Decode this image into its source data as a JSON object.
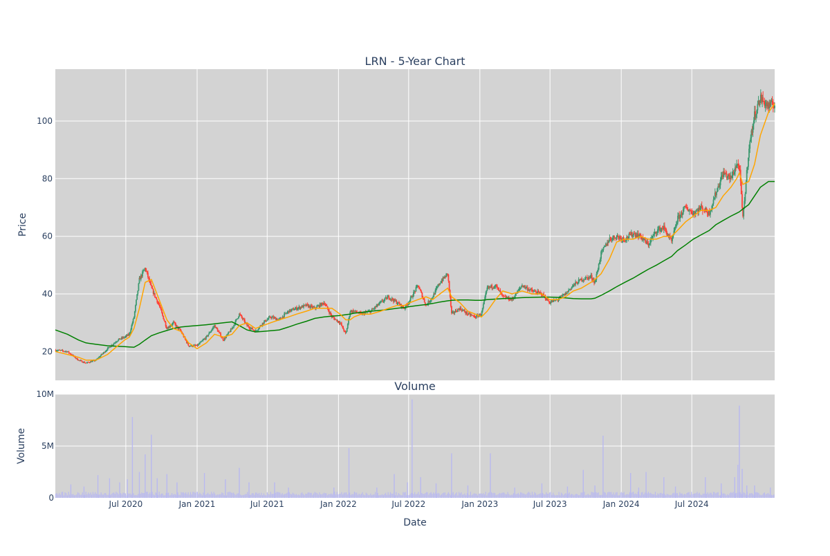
{
  "chart_data": [
    {
      "type": "candlestick",
      "title": "LRN - 5-Year Chart",
      "ylabel": "Price",
      "ylim": [
        10,
        118
      ],
      "yticks": [
        20,
        40,
        60,
        80,
        100
      ],
      "x_range": [
        "2020-01-01",
        "2025-01-31"
      ],
      "grid": true,
      "colors": {
        "up": "#3d9970",
        "down": "#ff4136",
        "ma_short": "#ffa500",
        "ma_long": "#008000",
        "background": "#d3d3d3"
      },
      "price_checkpoints": {
        "x": [
          "2020-01-01",
          "2020-02-01",
          "2020-03-01",
          "2020-03-20",
          "2020-04-15",
          "2020-05-15",
          "2020-06-10",
          "2020-06-28",
          "2020-07-10",
          "2020-07-22",
          "2020-08-05",
          "2020-08-20",
          "2020-09-05",
          "2020-09-25",
          "2020-10-15",
          "2020-11-01",
          "2020-11-20",
          "2020-12-10",
          "2021-01-01",
          "2021-01-25",
          "2021-02-15",
          "2021-03-10",
          "2021-04-01",
          "2021-04-20",
          "2021-05-10",
          "2021-06-01",
          "2021-06-20",
          "2021-07-10",
          "2021-08-01",
          "2021-08-25",
          "2021-09-15",
          "2021-10-10",
          "2021-11-01",
          "2021-11-25",
          "2021-12-15",
          "2022-01-05",
          "2022-01-20",
          "2022-01-31",
          "2022-02-10",
          "2022-03-01",
          "2022-03-25",
          "2022-04-20",
          "2022-05-10",
          "2022-06-01",
          "2022-06-20",
          "2022-07-05",
          "2022-07-25",
          "2022-08-15",
          "2022-09-01",
          "2022-09-20",
          "2022-10-10",
          "2022-10-20",
          "2022-11-10",
          "2022-12-01",
          "2022-12-20",
          "2023-01-05",
          "2023-01-20",
          "2023-02-10",
          "2023-03-01",
          "2023-03-25",
          "2023-04-20",
          "2023-05-15",
          "2023-06-10",
          "2023-06-30",
          "2023-07-20",
          "2023-08-10",
          "2023-08-30",
          "2023-09-20",
          "2023-10-15",
          "2023-10-25",
          "2023-11-10",
          "2023-12-01",
          "2023-12-20",
          "2024-01-10",
          "2024-02-01",
          "2024-02-20",
          "2024-03-10",
          "2024-04-01",
          "2024-04-20",
          "2024-05-10",
          "2024-05-25",
          "2024-06-15",
          "2024-07-05",
          "2024-07-25",
          "2024-08-15",
          "2024-09-01",
          "2024-09-20",
          "2024-10-10",
          "2024-10-25",
          "2024-11-01",
          "2024-11-10",
          "2024-11-25",
          "2024-12-10",
          "2024-12-25",
          "2025-01-15",
          "2025-01-31"
        ],
        "close": [
          20.5,
          20,
          17,
          16,
          17,
          21,
          24,
          25,
          26,
          32,
          45,
          49,
          42,
          36,
          28,
          30,
          27,
          22,
          22,
          25,
          29,
          24,
          28,
          33,
          29,
          27,
          30,
          32,
          31,
          34,
          35,
          36,
          35,
          37,
          32,
          30,
          26,
          34,
          34,
          33,
          34,
          37,
          39,
          37,
          35,
          38,
          43,
          36,
          39,
          44,
          47,
          33,
          35,
          33,
          32,
          33,
          42,
          43,
          39,
          38,
          43,
          41,
          40,
          37,
          38,
          40,
          43,
          45,
          46,
          44,
          54,
          59,
          60,
          59,
          61,
          60,
          57,
          62,
          63,
          58,
          66,
          70,
          68,
          70,
          68,
          75,
          82,
          80,
          85,
          84,
          66,
          90,
          102,
          108,
          105,
          106
        ],
        "ma_short": [
          20,
          19,
          18,
          17,
          17,
          19,
          22,
          24,
          25,
          28,
          35,
          44,
          45,
          38,
          31,
          28,
          27,
          23,
          21,
          23,
          26,
          25,
          26,
          29,
          30,
          28,
          29,
          30,
          31,
          32,
          33,
          34,
          35,
          35,
          35,
          33,
          31,
          31,
          32,
          33,
          33,
          34,
          35,
          36,
          36,
          37,
          38,
          39,
          38,
          40,
          42,
          39,
          37,
          34,
          33,
          32,
          34,
          38,
          41,
          40,
          41,
          40,
          40,
          38,
          38,
          39,
          41,
          42,
          44,
          45,
          47,
          52,
          58,
          59,
          59,
          60,
          59,
          59,
          60,
          60,
          62,
          65,
          67,
          69,
          69,
          70,
          74,
          77,
          80,
          82,
          78,
          79,
          85,
          95,
          103,
          106
        ],
        "ma_long": [
          27.5,
          26,
          24,
          23,
          22.5,
          22,
          21.8,
          21.7,
          21.6,
          21.5,
          22.5,
          24,
          25.5,
          26.5,
          27.3,
          28,
          28.5,
          28.8,
          29,
          29.3,
          29.6,
          30,
          30.3,
          29,
          27.5,
          26.8,
          27,
          27.2,
          27.5,
          28.5,
          29.5,
          30.5,
          31.5,
          32,
          32.3,
          32.5,
          32.8,
          33,
          33.3,
          33.6,
          34,
          34.3,
          34.6,
          35,
          35.3,
          35.6,
          36,
          36.3,
          36.7,
          37.2,
          37.6,
          37.8,
          37.9,
          37.9,
          37.8,
          37.8,
          38,
          38.2,
          38.4,
          38.5,
          38.7,
          38.8,
          38.9,
          38.9,
          38.8,
          38.6,
          38.4,
          38.3,
          38.3,
          38.5,
          39.5,
          41,
          42.5,
          44,
          45.5,
          47,
          48.5,
          50,
          51.5,
          53,
          55,
          57,
          59,
          60.5,
          62,
          64,
          65.5,
          67,
          68,
          68.5,
          69.5,
          71,
          74,
          77,
          79,
          79
        ]
      }
    },
    {
      "type": "bar",
      "title": "Volume",
      "xlabel": "Date",
      "ylabel": "Volume",
      "ylim": [
        0,
        10000000
      ],
      "yticks": [
        0,
        5000000,
        10000000
      ],
      "ytick_labels": [
        "0",
        "5M",
        "10M"
      ],
      "xtick_labels": [
        "Jul 2020",
        "Jan 2021",
        "Jul 2021",
        "Jan 2022",
        "Jul 2022",
        "Jan 2023",
        "Jul 2023",
        "Jan 2024",
        "Jul 2024"
      ],
      "xtick_dates": [
        "2020-07-01",
        "2021-01-01",
        "2021-07-01",
        "2022-01-01",
        "2022-07-01",
        "2023-01-01",
        "2023-07-01",
        "2024-01-01",
        "2024-07-01"
      ],
      "base_volume": 400000,
      "bar_color": "#b9b9f0",
      "volume_spikes": {
        "x": [
          "2020-02-10",
          "2020-03-15",
          "2020-04-20",
          "2020-05-20",
          "2020-06-15",
          "2020-07-05",
          "2020-07-18",
          "2020-08-05",
          "2020-08-20",
          "2020-09-05",
          "2020-09-20",
          "2020-10-15",
          "2020-11-10",
          "2021-01-20",
          "2021-03-15",
          "2021-04-20",
          "2021-05-15",
          "2021-07-20",
          "2021-08-25",
          "2021-12-20",
          "2022-01-28",
          "2022-04-10",
          "2022-05-25",
          "2022-06-28",
          "2022-07-10",
          "2022-08-01",
          "2022-09-10",
          "2022-10-20",
          "2022-12-01",
          "2023-01-28",
          "2023-04-01",
          "2023-06-10",
          "2023-08-15",
          "2023-09-25",
          "2023-10-25",
          "2023-11-15",
          "2024-01-25",
          "2024-02-15",
          "2024-03-05",
          "2024-04-20",
          "2024-05-20",
          "2024-08-05",
          "2024-09-15",
          "2024-10-20",
          "2024-10-28",
          "2024-11-01",
          "2024-11-08",
          "2024-11-20",
          "2024-12-10",
          "2025-01-20"
        ],
        "volume": [
          1300000,
          1100000,
          2200000,
          1900000,
          1500000,
          1800000,
          7800000,
          2500000,
          4200000,
          6100000,
          1900000,
          2300000,
          1500000,
          2400000,
          1800000,
          2900000,
          1500000,
          1500000,
          1000000,
          1000000,
          4800000,
          1000000,
          2300000,
          1500000,
          9500000,
          2000000,
          1400000,
          4300000,
          1200000,
          4300000,
          1000000,
          1400000,
          1100000,
          2700000,
          1200000,
          6000000,
          2400000,
          1000000,
          2500000,
          2000000,
          1100000,
          2000000,
          1400000,
          2000000,
          3200000,
          8900000,
          2800000,
          1200000,
          1200000,
          1000000
        ]
      }
    }
  ]
}
